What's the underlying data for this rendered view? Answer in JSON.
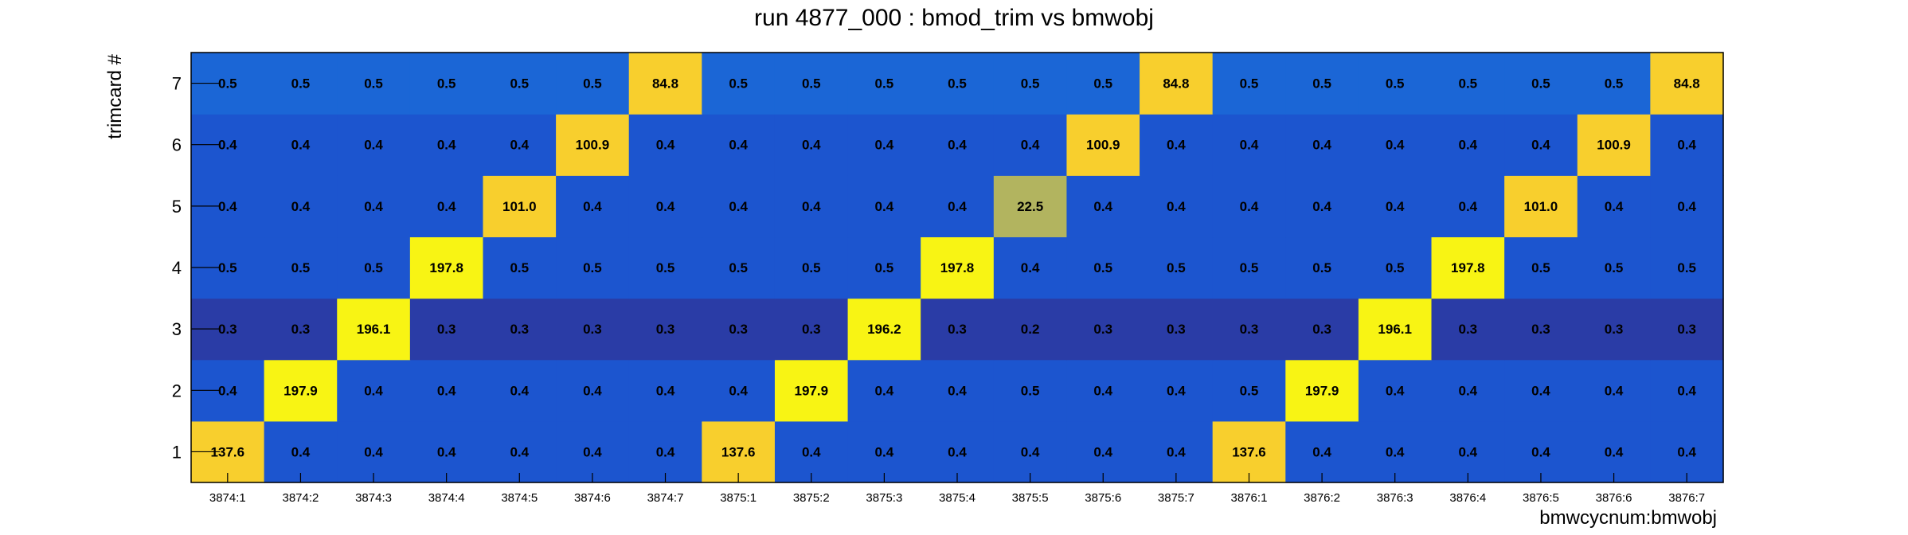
{
  "chart_data": {
    "type": "heatmap",
    "title": "run 4877_000 : bmod_trim vs bmwobj",
    "xlabel": "bmwcycnum:bmwobj",
    "ylabel": "trimcard #",
    "x_categories": [
      "3874:1",
      "3874:2",
      "3874:3",
      "3874:4",
      "3874:5",
      "3874:6",
      "3874:7",
      "3875:1",
      "3875:2",
      "3875:3",
      "3875:4",
      "3875:5",
      "3875:6",
      "3875:7",
      "3876:1",
      "3876:2",
      "3876:3",
      "3876:4",
      "3876:5",
      "3876:6",
      "3876:7"
    ],
    "y_categories": [
      "1",
      "2",
      "3",
      "4",
      "5",
      "6",
      "7"
    ],
    "z": [
      [
        "137.6",
        "0.4",
        "0.4",
        "0.4",
        "0.4",
        "0.4",
        "0.4",
        "137.6",
        "0.4",
        "0.4",
        "0.4",
        "0.4",
        "0.4",
        "0.4",
        "137.6",
        "0.4",
        "0.4",
        "0.4",
        "0.4",
        "0.4",
        "0.4"
      ],
      [
        "0.4",
        "197.9",
        "0.4",
        "0.4",
        "0.4",
        "0.4",
        "0.4",
        "0.4",
        "197.9",
        "0.4",
        "0.4",
        "0.5",
        "0.4",
        "0.4",
        "0.5",
        "197.9",
        "0.4",
        "0.4",
        "0.4",
        "0.4",
        "0.4"
      ],
      [
        "0.3",
        "0.3",
        "196.1",
        "0.3",
        "0.3",
        "0.3",
        "0.3",
        "0.3",
        "0.3",
        "196.2",
        "0.3",
        "0.2",
        "0.3",
        "0.3",
        "0.3",
        "0.3",
        "196.1",
        "0.3",
        "0.3",
        "0.3",
        "0.3"
      ],
      [
        "0.5",
        "0.5",
        "0.5",
        "197.8",
        "0.5",
        "0.5",
        "0.5",
        "0.5",
        "0.5",
        "0.5",
        "197.8",
        "0.4",
        "0.5",
        "0.5",
        "0.5",
        "0.5",
        "0.5",
        "197.8",
        "0.5",
        "0.5",
        "0.5"
      ],
      [
        "0.4",
        "0.4",
        "0.4",
        "0.4",
        "101.0",
        "0.4",
        "0.4",
        "0.4",
        "0.4",
        "0.4",
        "0.4",
        "22.5",
        "0.4",
        "0.4",
        "0.4",
        "0.4",
        "0.4",
        "0.4",
        "101.0",
        "0.4",
        "0.4"
      ],
      [
        "0.4",
        "0.4",
        "0.4",
        "0.4",
        "0.4",
        "100.9",
        "0.4",
        "0.4",
        "0.4",
        "0.4",
        "0.4",
        "0.4",
        "100.9",
        "0.4",
        "0.4",
        "0.4",
        "0.4",
        "0.4",
        "0.4",
        "100.9",
        "0.4"
      ],
      [
        "0.5",
        "0.5",
        "0.5",
        "0.5",
        "0.5",
        "0.5",
        "84.8",
        "0.5",
        "0.5",
        "0.5",
        "0.5",
        "0.5",
        "0.5",
        "84.8",
        "0.5",
        "0.5",
        "0.5",
        "0.5",
        "0.5",
        "0.5",
        "84.8"
      ]
    ],
    "colors": {
      "row3_low": "#2a3ca6",
      "row7_low": "#1b66d6",
      "default_low": "#1c55cf",
      "mid_22_5": "#b2b45f",
      "high_80_140": "#f8cf2d",
      "high_190_200": "#f8f414"
    },
    "grid": false,
    "legend": "none"
  }
}
